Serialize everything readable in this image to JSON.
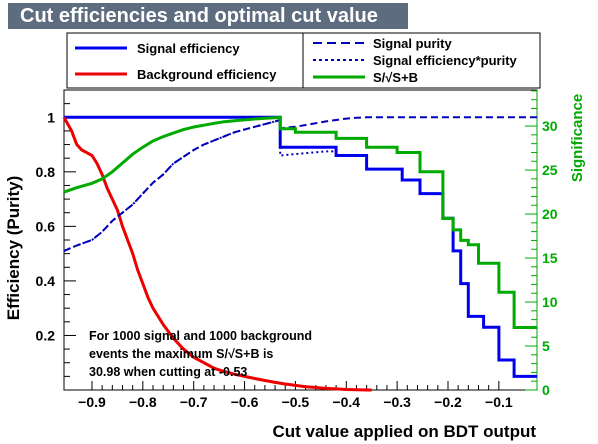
{
  "chart_data": {
    "type": "line",
    "title": "Cut efficiencies and optimal cut value",
    "xlabel": "Cut value applied on BDT output",
    "ylabel": "Efficiency (Purity)",
    "y2label": "Significance",
    "xlim": [
      -0.955,
      -0.025
    ],
    "ylim": [
      0,
      1.1
    ],
    "y2lim": [
      0,
      34.1
    ],
    "xticks": [
      "−0.9",
      "−0.8",
      "−0.7",
      "−0.6",
      "−0.5",
      "−0.4",
      "−0.3",
      "−0.2",
      "−0.1"
    ],
    "xtick_values": [
      -0.9,
      -0.8,
      -0.7,
      -0.6,
      -0.5,
      -0.4,
      -0.3,
      -0.2,
      -0.1
    ],
    "yticks": [
      "0.2",
      "0.4",
      "0.6",
      "0.8",
      "1"
    ],
    "ytick_values": [
      0.2,
      0.4,
      0.6,
      0.8,
      1.0
    ],
    "y2ticks": [
      "0",
      "5",
      "10",
      "15",
      "20",
      "25",
      "30"
    ],
    "y2tick_values": [
      0,
      5,
      10,
      15,
      20,
      25,
      30
    ],
    "legend_left": [
      "Signal efficiency",
      "Background efficiency"
    ],
    "legend_right": [
      "Signal purity",
      "Signal efficiency*purity",
      "S/√S+B"
    ],
    "annotation": [
      "For 1000 signal and 1000 background",
      "events the maximum S/√S+B is",
      "30.98 when cutting at -0.53"
    ],
    "colors": {
      "signal_efficiency": "#0000ee",
      "background_efficiency": "#ee0000",
      "signal_purity": "#0000bb",
      "significance": "#00aa00",
      "title_bg": "#5e6c7f"
    },
    "series": [
      {
        "key": "signal_efficiency",
        "axis": "left",
        "style": "solid",
        "width": 3,
        "x": [
          -0.955,
          -0.53,
          -0.53,
          -0.42,
          -0.42,
          -0.36,
          -0.36,
          -0.29,
          -0.29,
          -0.255,
          -0.255,
          -0.21,
          -0.21,
          -0.19,
          -0.19,
          -0.175,
          -0.175,
          -0.16,
          -0.16,
          -0.13,
          -0.13,
          -0.1,
          -0.1,
          -0.07,
          -0.07,
          -0.055,
          -0.055,
          -0.025
        ],
        "y": [
          1.0,
          1.0,
          0.89,
          0.89,
          0.86,
          0.86,
          0.81,
          0.81,
          0.77,
          0.77,
          0.72,
          0.72,
          0.63,
          0.63,
          0.51,
          0.51,
          0.39,
          0.39,
          0.27,
          0.27,
          0.23,
          0.23,
          0.11,
          0.11,
          0.05,
          0.05,
          0.05,
          0.05
        ]
      },
      {
        "key": "background_efficiency",
        "axis": "left",
        "style": "solid",
        "width": 3,
        "x": [
          -0.955,
          -0.94,
          -0.93,
          -0.92,
          -0.91,
          -0.9,
          -0.89,
          -0.88,
          -0.87,
          -0.86,
          -0.85,
          -0.84,
          -0.83,
          -0.82,
          -0.81,
          -0.8,
          -0.79,
          -0.78,
          -0.76,
          -0.74,
          -0.72,
          -0.7,
          -0.68,
          -0.66,
          -0.64,
          -0.62,
          -0.6,
          -0.58,
          -0.56,
          -0.54,
          -0.52,
          -0.5,
          -0.48,
          -0.46,
          -0.44,
          -0.42,
          -0.4,
          -0.38,
          -0.36,
          -0.35
        ],
        "y": [
          1.0,
          0.95,
          0.9,
          0.88,
          0.87,
          0.86,
          0.83,
          0.79,
          0.74,
          0.7,
          0.66,
          0.6,
          0.55,
          0.5,
          0.44,
          0.39,
          0.34,
          0.3,
          0.24,
          0.19,
          0.15,
          0.12,
          0.1,
          0.08,
          0.068,
          0.058,
          0.05,
          0.042,
          0.035,
          0.028,
          0.022,
          0.017,
          0.012,
          0.009,
          0.006,
          0.004,
          0.002,
          0.001,
          0.0,
          0.0
        ]
      },
      {
        "key": "signal_purity",
        "axis": "left",
        "style": "dashed",
        "width": 2,
        "x": [
          -0.955,
          -0.93,
          -0.9,
          -0.88,
          -0.86,
          -0.84,
          -0.82,
          -0.8,
          -0.78,
          -0.76,
          -0.74,
          -0.72,
          -0.7,
          -0.68,
          -0.66,
          -0.64,
          -0.62,
          -0.6,
          -0.58,
          -0.56,
          -0.54,
          -0.53,
          -0.53,
          -0.5,
          -0.47,
          -0.44,
          -0.42,
          -0.4,
          -0.38,
          -0.36,
          -0.34,
          -0.3,
          -0.25,
          -0.2,
          -0.15,
          -0.1,
          -0.05,
          -0.025
        ],
        "y": [
          0.51,
          0.53,
          0.55,
          0.58,
          0.62,
          0.65,
          0.68,
          0.72,
          0.76,
          0.79,
          0.83,
          0.855,
          0.88,
          0.9,
          0.915,
          0.93,
          0.945,
          0.955,
          0.965,
          0.975,
          0.985,
          0.99,
          0.96,
          0.965,
          0.975,
          0.985,
          0.99,
          0.995,
          0.998,
          1.0,
          1.0,
          1.0,
          1.0,
          1.0,
          1.0,
          1.0,
          1.0,
          1.0
        ]
      },
      {
        "key": "signal_efficiency_purity",
        "axis": "left",
        "style": "dotted",
        "width": 2,
        "x": [
          -0.955,
          -0.93,
          -0.9,
          -0.88,
          -0.86,
          -0.84,
          -0.82,
          -0.8,
          -0.78,
          -0.76,
          -0.74,
          -0.72,
          -0.7,
          -0.68,
          -0.66,
          -0.64,
          -0.62,
          -0.6,
          -0.58,
          -0.56,
          -0.54,
          -0.53,
          -0.53,
          -0.5,
          -0.47,
          -0.44,
          -0.42
        ],
        "y": [
          0.51,
          0.53,
          0.55,
          0.58,
          0.62,
          0.65,
          0.68,
          0.72,
          0.76,
          0.79,
          0.83,
          0.855,
          0.88,
          0.9,
          0.915,
          0.93,
          0.945,
          0.955,
          0.965,
          0.975,
          0.985,
          0.99,
          0.86,
          0.865,
          0.87,
          0.875,
          0.875
        ]
      },
      {
        "key": "significance",
        "axis": "right",
        "style": "solid",
        "width": 3,
        "x": [
          -0.955,
          -0.93,
          -0.9,
          -0.88,
          -0.86,
          -0.84,
          -0.82,
          -0.8,
          -0.78,
          -0.76,
          -0.74,
          -0.72,
          -0.7,
          -0.68,
          -0.66,
          -0.64,
          -0.62,
          -0.6,
          -0.58,
          -0.56,
          -0.54,
          -0.53,
          -0.53,
          -0.5,
          -0.5,
          -0.42,
          -0.42,
          -0.36,
          -0.36,
          -0.3,
          -0.3,
          -0.255,
          -0.255,
          -0.21,
          -0.21,
          -0.19,
          -0.19,
          -0.175,
          -0.175,
          -0.16,
          -0.16,
          -0.14,
          -0.14,
          -0.1,
          -0.1,
          -0.07,
          -0.07,
          -0.055,
          -0.055,
          -0.025
        ],
        "y": [
          22.5,
          23.0,
          23.5,
          24.0,
          24.8,
          25.8,
          26.8,
          27.6,
          28.3,
          28.8,
          29.2,
          29.6,
          29.9,
          30.1,
          30.3,
          30.5,
          30.6,
          30.7,
          30.8,
          30.9,
          30.95,
          30.98,
          29.7,
          29.7,
          29.3,
          29.3,
          28.6,
          28.6,
          27.6,
          27.6,
          27.0,
          27.0,
          24.8,
          24.8,
          19.5,
          19.5,
          18.2,
          18.2,
          17.0,
          17.0,
          16.5,
          16.5,
          14.4,
          14.4,
          11.1,
          11.1,
          7.1,
          7.1,
          7.1,
          7.1
        ]
      }
    ]
  }
}
